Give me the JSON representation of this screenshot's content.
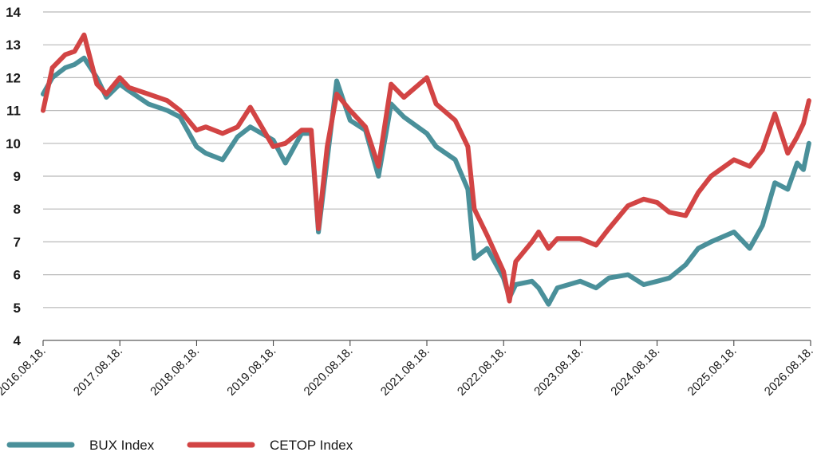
{
  "chart_data": {
    "type": "line",
    "title": "",
    "xlabel": "",
    "ylabel": "",
    "ylim": [
      4,
      14
    ],
    "y_ticks": [
      "4",
      "5",
      "6",
      "7",
      "8",
      "9",
      "10",
      "11",
      "12",
      "13",
      "14"
    ],
    "x_ticks": [
      "2016.08.18.",
      "2017.08.18.",
      "2018.08.18.",
      "2019.08.18.",
      "2020.08.18.",
      "2021.08.18.",
      "2022.08.18.",
      "2023.08.18.",
      "2024.08.18.",
      "2025.08.18.",
      "2026.08.18."
    ],
    "grid": "horizontal",
    "legend_position": "bottom-left",
    "series": [
      {
        "name": "BUX Index",
        "color": "#4a909a",
        "x": [
          "2016-08-18",
          "2016-10-01",
          "2016-12-01",
          "2017-01-15",
          "2017-03-01",
          "2017-05-01",
          "2017-06-15",
          "2017-08-18",
          "2017-10-01",
          "2018-01-01",
          "2018-04-01",
          "2018-06-01",
          "2018-08-18",
          "2018-10-01",
          "2018-12-20",
          "2019-03-01",
          "2019-05-01",
          "2019-08-18",
          "2019-10-15",
          "2019-12-31",
          "2020-02-15",
          "2020-03-20",
          "2020-05-01",
          "2020-06-15",
          "2020-08-18",
          "2020-10-30",
          "2020-12-31",
          "2021-03-01",
          "2021-05-01",
          "2021-08-18",
          "2021-10-01",
          "2021-12-31",
          "2022-03-01",
          "2022-04-01",
          "2022-06-01",
          "2022-08-18",
          "2022-09-15",
          "2022-10-15",
          "2022-12-31",
          "2023-02-01",
          "2023-03-20",
          "2023-05-01",
          "2023-08-18",
          "2023-11-01",
          "2024-01-01",
          "2024-04-01",
          "2024-06-15",
          "2024-08-18",
          "2024-10-15",
          "2024-12-31",
          "2025-03-01",
          "2025-05-01",
          "2025-08-18",
          "2025-11-01",
          "2026-01-01",
          "2026-03-01",
          "2026-05-01",
          "2026-06-15",
          "2026-07-15",
          "2026-08-10"
        ],
        "values": [
          11.5,
          12.0,
          12.3,
          12.4,
          12.6,
          12.0,
          11.4,
          11.8,
          11.6,
          11.2,
          11.0,
          10.8,
          9.9,
          9.7,
          9.5,
          10.2,
          10.5,
          10.1,
          9.4,
          10.3,
          10.3,
          7.3,
          9.5,
          11.9,
          10.7,
          10.4,
          9.0,
          11.2,
          10.8,
          10.3,
          9.9,
          9.5,
          8.6,
          6.5,
          6.8,
          5.9,
          5.3,
          5.7,
          5.8,
          5.6,
          5.1,
          5.6,
          5.8,
          5.6,
          5.9,
          6.0,
          5.7,
          5.8,
          5.9,
          6.3,
          6.8,
          7.0,
          7.3,
          6.8,
          7.5,
          8.8,
          8.6,
          9.4,
          9.2,
          10.0
        ]
      },
      {
        "name": "CETOP Index",
        "color": "#d24444",
        "x": [
          "2016-08-18",
          "2016-10-01",
          "2016-12-01",
          "2017-01-15",
          "2017-03-01",
          "2017-05-01",
          "2017-06-15",
          "2017-08-18",
          "2017-10-01",
          "2018-01-01",
          "2018-04-01",
          "2018-06-01",
          "2018-08-18",
          "2018-10-01",
          "2018-12-20",
          "2019-03-01",
          "2019-05-01",
          "2019-08-18",
          "2019-10-15",
          "2019-12-31",
          "2020-02-15",
          "2020-03-20",
          "2020-05-01",
          "2020-06-15",
          "2020-08-18",
          "2020-10-30",
          "2020-12-31",
          "2021-03-01",
          "2021-05-01",
          "2021-08-18",
          "2021-10-01",
          "2021-12-31",
          "2022-03-01",
          "2022-04-01",
          "2022-06-01",
          "2022-08-18",
          "2022-09-15",
          "2022-10-15",
          "2022-12-31",
          "2023-02-01",
          "2023-03-20",
          "2023-05-01",
          "2023-08-18",
          "2023-11-01",
          "2024-01-01",
          "2024-04-01",
          "2024-06-15",
          "2024-08-18",
          "2024-10-15",
          "2024-12-31",
          "2025-03-01",
          "2025-05-01",
          "2025-08-18",
          "2025-11-01",
          "2026-01-01",
          "2026-03-01",
          "2026-05-01",
          "2026-06-15",
          "2026-07-15",
          "2026-08-10"
        ],
        "values": [
          11.0,
          12.3,
          12.7,
          12.8,
          13.3,
          11.8,
          11.5,
          12.0,
          11.7,
          11.5,
          11.3,
          11.0,
          10.4,
          10.5,
          10.3,
          10.5,
          11.1,
          9.9,
          10.0,
          10.4,
          10.4,
          7.4,
          9.9,
          11.5,
          11.0,
          10.5,
          9.3,
          11.8,
          11.4,
          12.0,
          11.2,
          10.7,
          9.9,
          8.0,
          7.2,
          6.1,
          5.2,
          6.4,
          7.0,
          7.3,
          6.8,
          7.1,
          7.1,
          6.9,
          7.4,
          8.1,
          8.3,
          8.2,
          7.9,
          7.8,
          8.5,
          9.0,
          9.5,
          9.3,
          9.8,
          10.9,
          9.7,
          10.2,
          10.6,
          11.3
        ]
      }
    ]
  }
}
